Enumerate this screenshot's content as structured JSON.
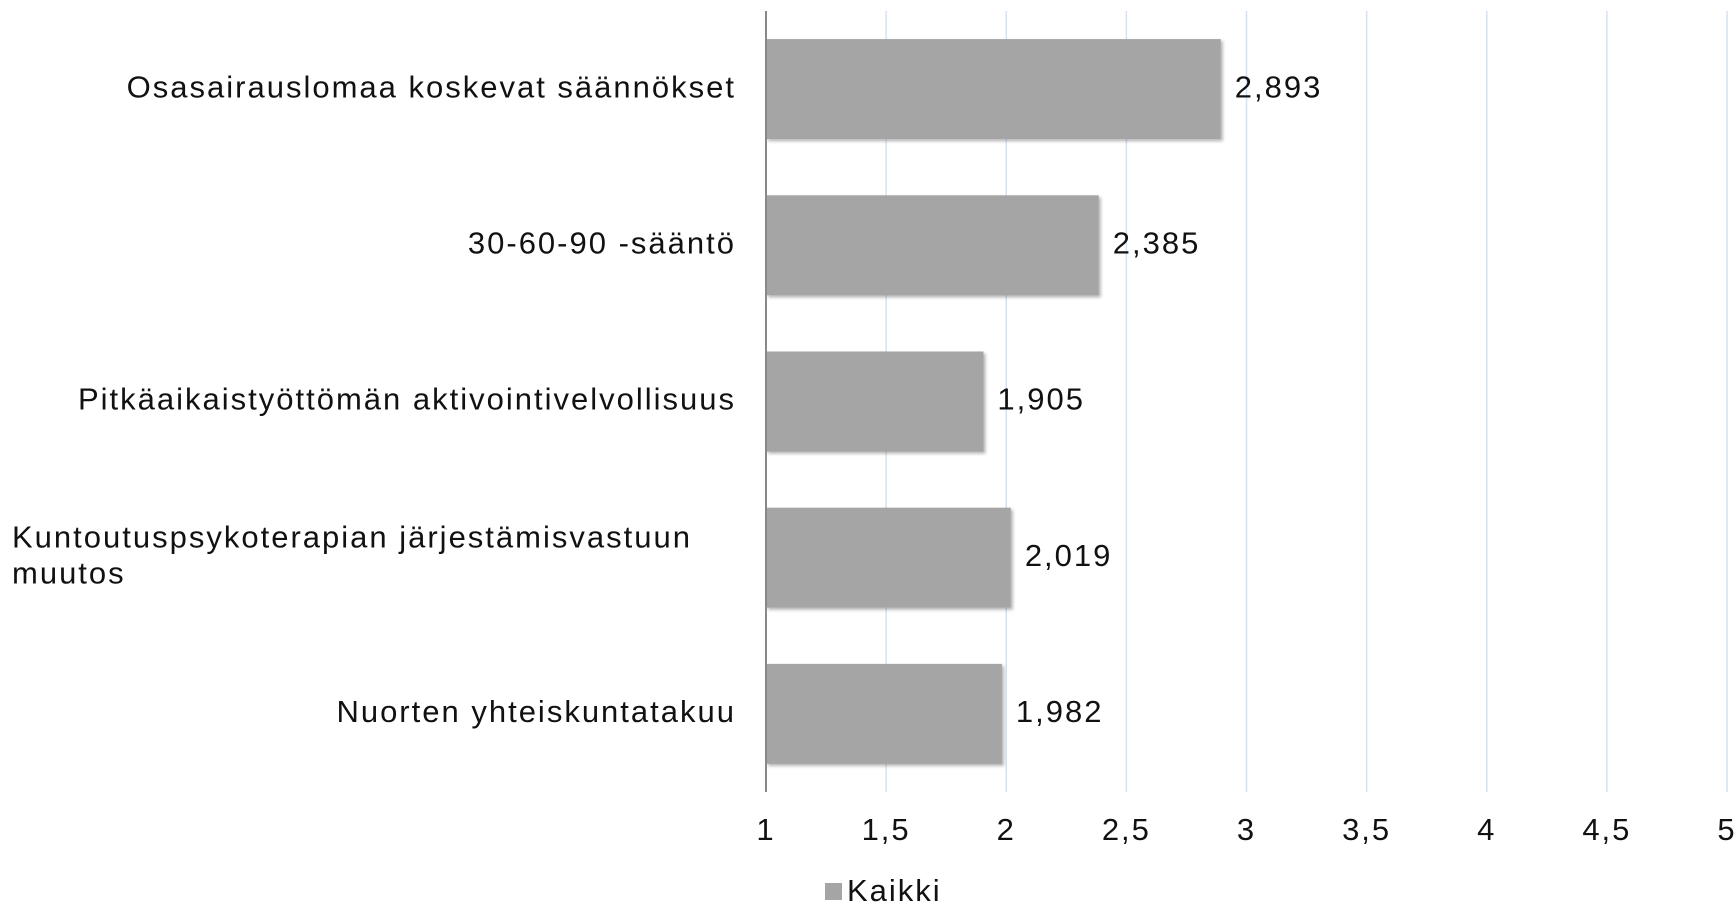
{
  "chart_data": {
    "type": "bar",
    "orientation": "horizontal",
    "categories": [
      "Osasairauslomaa koskevat säännökset",
      "30-60-90 -sääntö",
      "Pitkäaikaistyöttömän aktivointivelvollisuus",
      "Kuntoutuspsykoterapian järjestämisvastuun muutos",
      "Nuorten yhteiskuntatakuu"
    ],
    "series": [
      {
        "name": "Kaikki",
        "color": "#a5a5a5",
        "values": [
          2.893,
          2.385,
          1.905,
          2.019,
          1.982
        ],
        "value_labels": [
          "2,893",
          "2,385",
          "1,905",
          "2,019",
          "1,982"
        ]
      }
    ],
    "xlim": [
      1,
      5
    ],
    "xticks": [
      1,
      {
        "value": 1.5,
        "label": "1,5"
      },
      2,
      {
        "value": 2.5,
        "label": "2,5"
      },
      3,
      {
        "value": 3.5,
        "label": "3,5"
      },
      4,
      {
        "value": 4.5,
        "label": "4,5"
      },
      5
    ],
    "grid": true,
    "legend": "bottom"
  }
}
